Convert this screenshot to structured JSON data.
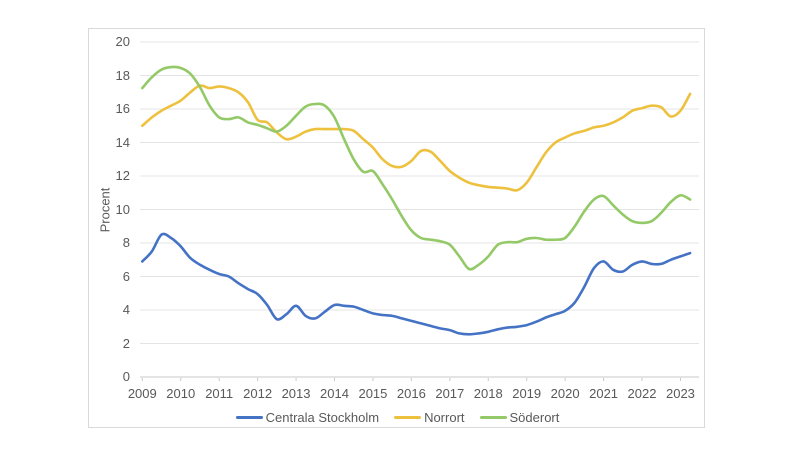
{
  "figure": {
    "y_axis_title": "Procent",
    "y_ticks": [
      0,
      2,
      4,
      6,
      8,
      10,
      12,
      14,
      16,
      18,
      20
    ],
    "x_ticks": [
      "2009",
      "2010",
      "2011",
      "2012",
      "2013",
      "2014",
      "2015",
      "2016",
      "2017",
      "2018",
      "2019",
      "2020",
      "2021",
      "2022",
      "2023"
    ],
    "legend": [
      {
        "label": "Centrala Stockholm",
        "color": "#4472C4"
      },
      {
        "label": "Norrort",
        "color": "#EDC13E"
      },
      {
        "label": "Söderort",
        "color": "#93C966"
      }
    ],
    "colors": {
      "axis_text": "#595959",
      "gridline": "#e4e4e4",
      "axis_line": "#c9c9c9",
      "panel_border": "#d9d9d9",
      "background": "#ffffff"
    }
  },
  "chart_data": {
    "type": "line",
    "title": "",
    "xlabel": "",
    "ylabel": "Procent",
    "ylim": [
      0,
      20
    ],
    "xlim": [
      2009,
      2023.6
    ],
    "x_start": 2009,
    "x_step": 0.25,
    "x_unit": "year (quarterly samples)",
    "grid": "horizontal",
    "legend_position": "bottom",
    "series": [
      {
        "name": "Centrala Stockholm",
        "color": "#4472C4",
        "values": [
          6.9,
          7.5,
          8.5,
          8.3,
          7.8,
          7.1,
          6.7,
          6.4,
          6.15,
          6.0,
          5.6,
          5.25,
          4.95,
          4.3,
          3.45,
          3.75,
          4.25,
          3.65,
          3.5,
          3.9,
          4.3,
          4.25,
          4.2,
          4.0,
          3.8,
          3.7,
          3.65,
          3.5,
          3.35,
          3.2,
          3.05,
          2.9,
          2.8,
          2.6,
          2.55,
          2.6,
          2.7,
          2.85,
          2.95,
          3.0,
          3.1,
          3.3,
          3.55,
          3.75,
          3.95,
          4.45,
          5.4,
          6.5,
          6.9,
          6.4,
          6.3,
          6.7,
          6.9,
          6.75,
          6.75,
          7.0,
          7.2,
          7.4
        ]
      },
      {
        "name": "Norrort",
        "color": "#EDC13E",
        "values": [
          15.0,
          15.5,
          15.9,
          16.2,
          16.5,
          17.0,
          17.4,
          17.25,
          17.35,
          17.25,
          17.0,
          16.4,
          15.35,
          15.2,
          14.6,
          14.2,
          14.35,
          14.65,
          14.8,
          14.8,
          14.8,
          14.8,
          14.7,
          14.2,
          13.7,
          13.0,
          12.6,
          12.55,
          12.9,
          13.5,
          13.45,
          12.9,
          12.3,
          11.9,
          11.6,
          11.45,
          11.35,
          11.3,
          11.25,
          11.15,
          11.6,
          12.5,
          13.4,
          14.0,
          14.3,
          14.55,
          14.7,
          14.9,
          15.0,
          15.2,
          15.5,
          15.9,
          16.05,
          16.2,
          16.1,
          15.55,
          15.9,
          16.9
        ]
      },
      {
        "name": "Söderort",
        "color": "#93C966",
        "values": [
          17.25,
          17.9,
          18.35,
          18.5,
          18.45,
          18.1,
          17.3,
          16.2,
          15.5,
          15.4,
          15.5,
          15.2,
          15.05,
          14.85,
          14.65,
          15.0,
          15.6,
          16.15,
          16.3,
          16.2,
          15.5,
          14.2,
          13.0,
          12.25,
          12.3,
          11.5,
          10.6,
          9.6,
          8.75,
          8.3,
          8.2,
          8.1,
          7.9,
          7.2,
          6.45,
          6.7,
          7.2,
          7.9,
          8.05,
          8.05,
          8.25,
          8.3,
          8.2,
          8.2,
          8.3,
          9.0,
          9.9,
          10.6,
          10.8,
          10.25,
          9.7,
          9.3,
          9.2,
          9.3,
          9.8,
          10.45,
          10.85,
          10.6
        ]
      }
    ]
  }
}
